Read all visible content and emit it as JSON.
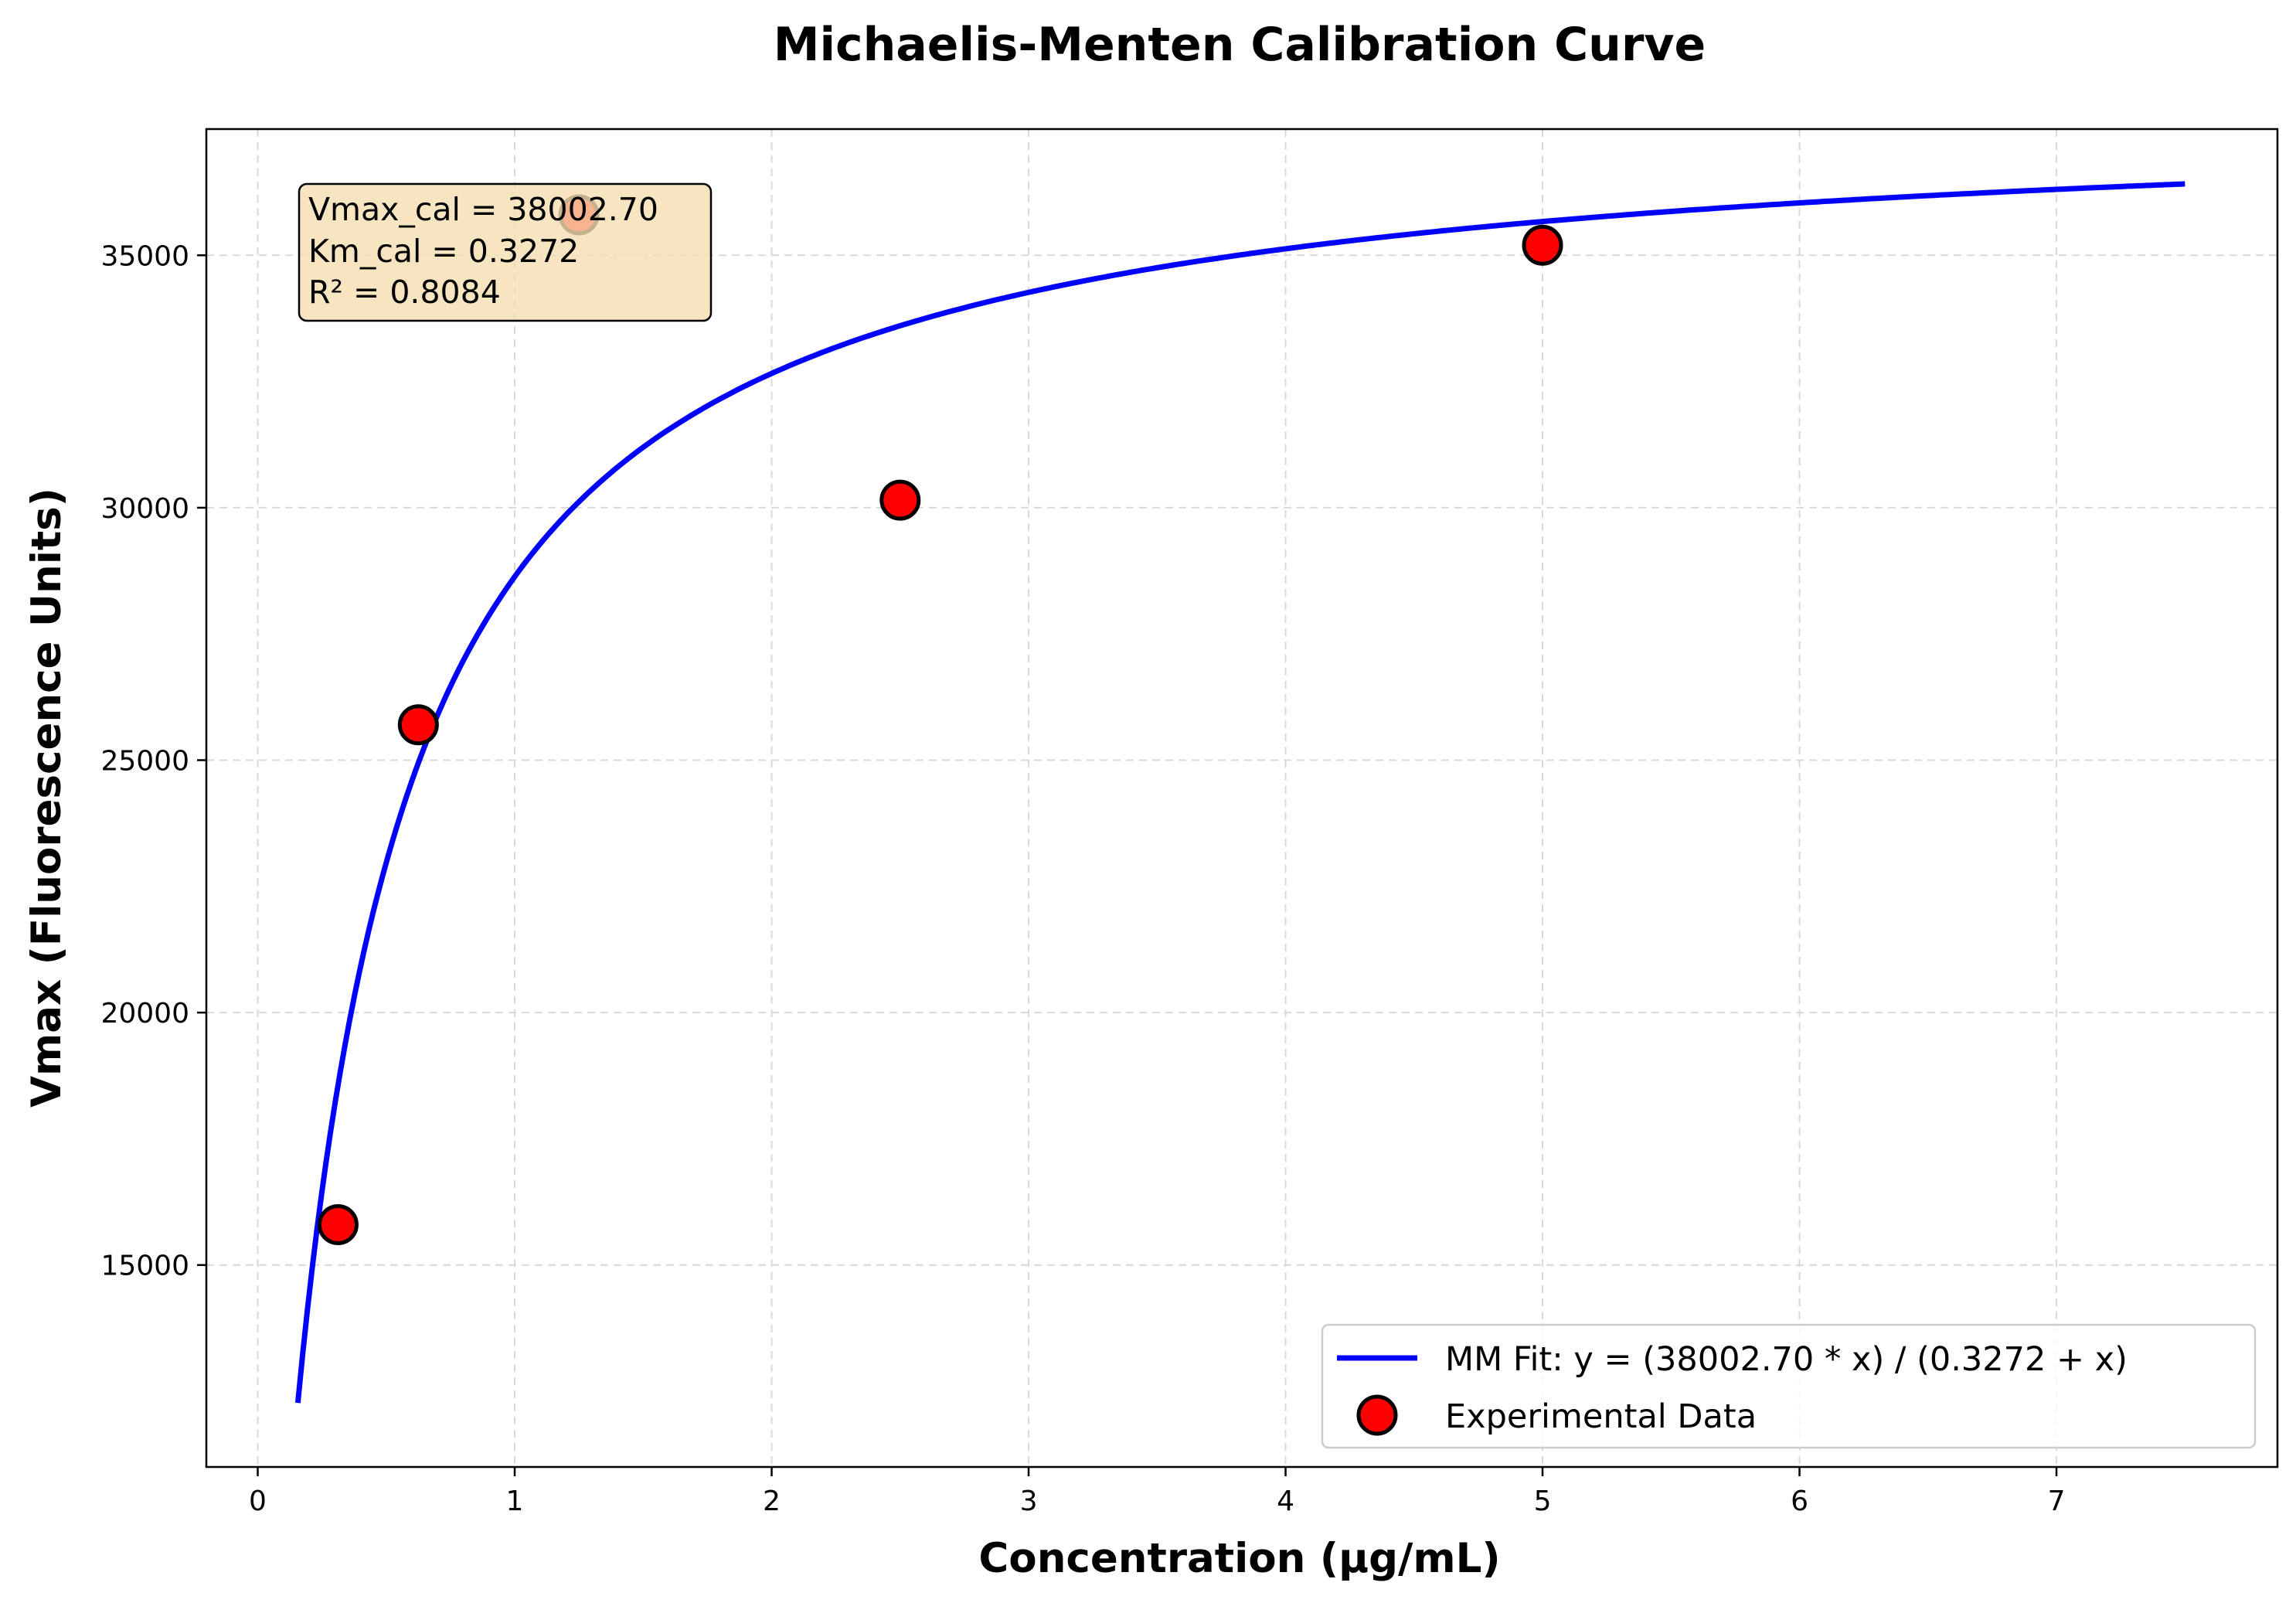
{
  "chart_data": {
    "type": "scatter",
    "title": "Michaelis-Menten Calibration Curve",
    "xlabel": "Concentration (µg/mL)",
    "ylabel": "Vmax (Fluorescence Units)",
    "xlim": [
      -0.2,
      7.86
    ],
    "ylim": [
      11000,
      37500
    ],
    "xticks": [
      0,
      1,
      2,
      3,
      4,
      5,
      6,
      7
    ],
    "yticks": [
      15000,
      20000,
      25000,
      30000,
      35000
    ],
    "grid": true,
    "legend_position": "lower-right",
    "fit": {
      "name": "MM Fit: y = (38002.70 * x) / (0.3272 + x)",
      "model": "michaelis-menten",
      "vmax": 38002.7,
      "km": 0.3272,
      "x_range": [
        0.156,
        7.5
      ],
      "color": "#0000ff"
    },
    "series": [
      {
        "name": "Experimental Data",
        "color": "#ff0000",
        "edge_color": "#000000",
        "points": [
          {
            "x": 0.3125,
            "y": 15800
          },
          {
            "x": 0.625,
            "y": 25700
          },
          {
            "x": 1.25,
            "y": 35800
          },
          {
            "x": 2.5,
            "y": 30150
          },
          {
            "x": 5.0,
            "y": 35200
          }
        ]
      }
    ],
    "stats_box": {
      "lines": [
        "Vmax_cal = 38002.70",
        "Km_cal = 0.3272",
        "R² = 0.8084"
      ],
      "background": "#f5deb3"
    }
  }
}
